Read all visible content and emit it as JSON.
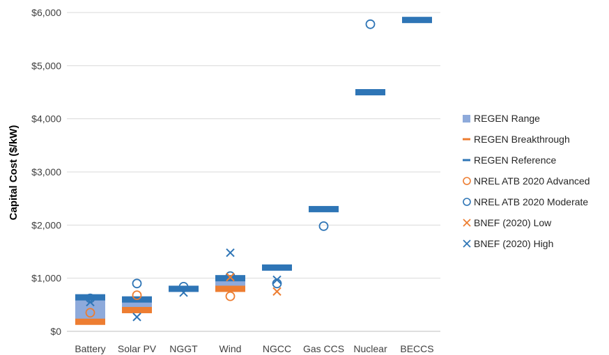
{
  "chart_data": {
    "type": "bar",
    "ylabel": "Capital Cost ($/kW)",
    "ylim": [
      0,
      6000
    ],
    "yticks": [
      0,
      1000,
      2000,
      3000,
      4000,
      5000,
      6000
    ],
    "ytick_labels": [
      "$0",
      "$1,000",
      "$2,000",
      "$3,000",
      "$4,000",
      "$5,000",
      "$6,000"
    ],
    "grid": true,
    "legend_position": "right",
    "categories": [
      "Battery",
      "Solar PV",
      "NGGT",
      "Wind",
      "NGCC",
      "Gas CCS",
      "Nuclear",
      "BECCS"
    ],
    "series": [
      {
        "name": "REGEN Range",
        "kind": "range",
        "color": "#8eaadb",
        "low": [
          180,
          400,
          null,
          800,
          null,
          null,
          null,
          null
        ],
        "high": [
          640,
          600,
          null,
          1000,
          null,
          null,
          null,
          null
        ]
      },
      {
        "name": "REGEN Breakthrough",
        "kind": "dash",
        "color": "#ed7d31",
        "values": [
          180,
          400,
          null,
          800,
          null,
          null,
          null,
          null
        ]
      },
      {
        "name": "REGEN Reference",
        "kind": "dash",
        "color": "#2e75b6",
        "values": [
          640,
          600,
          800,
          1000,
          1200,
          2300,
          4500,
          5860
        ]
      },
      {
        "name": "NREL ATB 2020 Advanced",
        "kind": "circle",
        "color": "#ed7d31",
        "values": [
          350,
          680,
          null,
          660,
          null,
          null,
          null,
          null
        ]
      },
      {
        "name": "NREL ATB 2020 Moderate",
        "kind": "circle",
        "color": "#2e75b6",
        "values": [
          620,
          900,
          840,
          1040,
          900,
          1980,
          5780,
          null
        ]
      },
      {
        "name": "BNEF (2020) Low",
        "kind": "x",
        "color": "#ed7d31",
        "values": [
          null,
          null,
          null,
          1020,
          750,
          null,
          null,
          null
        ]
      },
      {
        "name": "BNEF (2020) High",
        "kind": "x",
        "color": "#2e75b6",
        "values": [
          550,
          270,
          730,
          1480,
          970,
          null,
          null,
          null
        ]
      }
    ]
  }
}
